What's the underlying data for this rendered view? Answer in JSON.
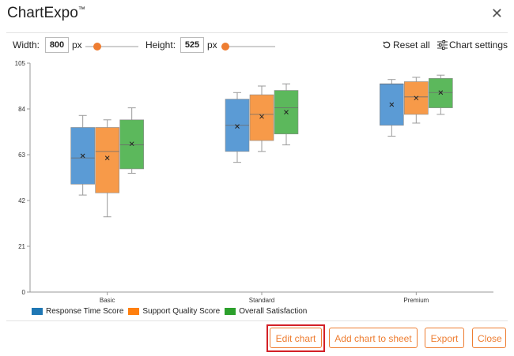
{
  "app": {
    "title": "ChartExpo",
    "trademark": "™"
  },
  "controls": {
    "width_label": "Width:",
    "width_value": "800",
    "width_unit": "px",
    "height_label": "Height:",
    "height_value": "525",
    "height_unit": "px",
    "width_slider_fraction": 0.22,
    "height_slider_fraction": 0.08
  },
  "toolbar": {
    "reset_label": "Reset all",
    "settings_label": "Chart settings"
  },
  "buttons": {
    "edit_chart": "Edit chart",
    "add_chart": "Add chart to sheet",
    "export": "Export",
    "close": "Close"
  },
  "chart_data": {
    "type": "boxplot",
    "ylim": [
      0,
      105
    ],
    "yticks": [
      0,
      21,
      42,
      63,
      84,
      105
    ],
    "grid": false,
    "legend_position": "bottom-left",
    "categories": [
      "Basic",
      "Standard",
      "Premium"
    ],
    "series": [
      {
        "name": "Response Time Score",
        "color": "#5b9bd5",
        "boxes": [
          {
            "min": 44.5,
            "q1": 49.5,
            "median": 61.5,
            "q3": 75.5,
            "max": 81,
            "mean": 62.5
          },
          {
            "min": 59.5,
            "q1": 64.5,
            "median": 76.5,
            "q3": 88.5,
            "max": 91.5,
            "mean": 76
          },
          {
            "min": 71.5,
            "q1": 76.5,
            "median": 95.5,
            "q3": 95.5,
            "max": 97.5,
            "mean": 86
          }
        ]
      },
      {
        "name": "Support Quality Score",
        "color": "#f79a49",
        "boxes": [
          {
            "min": 34.5,
            "q1": 45.5,
            "median": 64.5,
            "q3": 75.5,
            "max": 79,
            "mean": 61.5
          },
          {
            "min": 64.5,
            "q1": 69.5,
            "median": 81.5,
            "q3": 90.5,
            "max": 94.5,
            "mean": 80.5
          },
          {
            "min": 77.5,
            "q1": 81.5,
            "median": 89.5,
            "q3": 96.5,
            "max": 98.5,
            "mean": 89
          }
        ]
      },
      {
        "name": "Overall Satisfaction",
        "color": "#5cb85c",
        "boxes": [
          {
            "min": 54.5,
            "q1": 56.5,
            "median": 67.5,
            "q3": 79,
            "max": 84.5,
            "mean": 68
          },
          {
            "min": 67.5,
            "q1": 72.5,
            "median": 84.5,
            "q3": 92.5,
            "max": 95.5,
            "mean": 82.5
          },
          {
            "min": 81.5,
            "q1": 84.5,
            "median": 91.5,
            "q3": 98,
            "max": 99.5,
            "mean": 91.5
          }
        ]
      }
    ]
  }
}
